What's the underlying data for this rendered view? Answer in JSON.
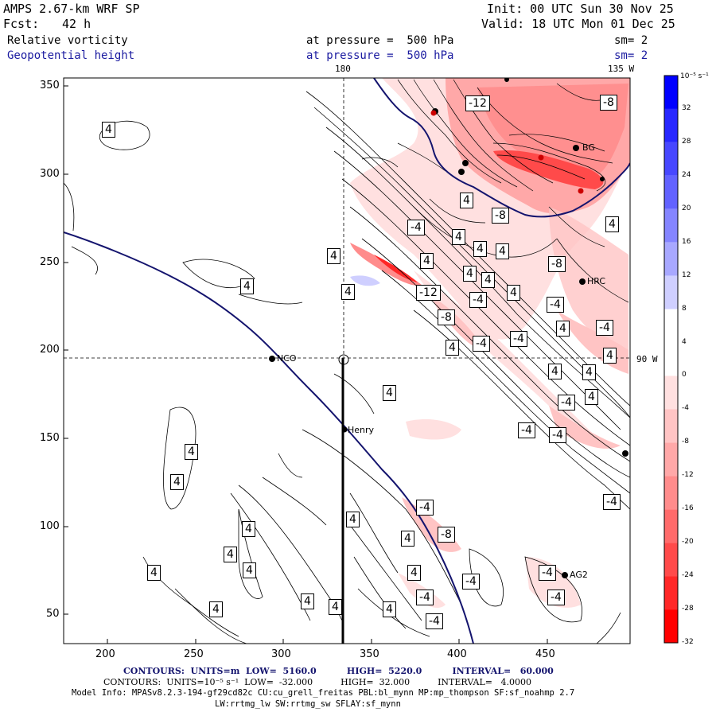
{
  "header": {
    "model": "AMPS 2.67-km WRF SP",
    "fcst_label": "Fcst:",
    "fcst_value": "42 h",
    "init": "Init: 00 UTC Sun 30 Nov 25",
    "valid": "Valid: 18 UTC Mon 01 Dec 25",
    "field1_name": "Relative vorticity",
    "field1_level": "at pressure =  500 hPa",
    "field1_sm": "sm= 2",
    "field2_name": "Geopotential height",
    "field2_level": "at pressure =  500 hPa",
    "field2_sm": "sm= 2"
  },
  "map": {
    "meridian_label": "180",
    "meridian_label_2": "135 W",
    "parallel_label": "90 W",
    "x_ticks": [
      "200",
      "250",
      "300",
      "350",
      "400",
      "450"
    ],
    "y_ticks": [
      "350",
      "300",
      "250",
      "200",
      "150",
      "100",
      "50"
    ],
    "stations": [
      {
        "name": "NCO"
      },
      {
        "name": "Henry"
      },
      {
        "name": "HRC"
      },
      {
        "name": "AG2"
      },
      {
        "name": "BG"
      }
    ],
    "contour_labels": [
      "4",
      "-4",
      "-8",
      "-12"
    ]
  },
  "colorbar": {
    "unit": "10⁻⁵ s⁻¹",
    "labels": [
      "32",
      "28",
      "24",
      "20",
      "16",
      "12",
      "8",
      "4",
      "0",
      "-4",
      "-8",
      "-12",
      "-16",
      "-20",
      "-24",
      "-28",
      "-32"
    ],
    "colors": [
      "#0000ff",
      "#2727ff",
      "#4747ff",
      "#6262ff",
      "#8585ff",
      "#a8a8ff",
      "#cfcfff",
      "#ffffff",
      "#ffffff",
      "#ffe0e0",
      "#ffc4c4",
      "#ffa8a8",
      "#ff8c8c",
      "#ff6b6b",
      "#ff4a4a",
      "#ff2727",
      "#ff0000"
    ]
  },
  "footer": {
    "line1": "CONTOURS:  UNITS=m  LOW=  5160.0          HIGH=  5220.0          INTERVAL=   60.000",
    "line2": "CONTOURS:  UNITS=10⁻⁵ s⁻¹  LOW=  -32.000          HIGH=  32.000          INTERVAL=   4.0000",
    "line3": "Model Info: MPASv8.2.3-194-gf29cd82c CU:cu_grell_freitas PBL:bl_mynn MP:mp_thompson SF:sf_noahmp 2.7",
    "line4": "LW:rrtmg_lw SW:rrtmg_sw SFLAY:sf_mynn"
  }
}
